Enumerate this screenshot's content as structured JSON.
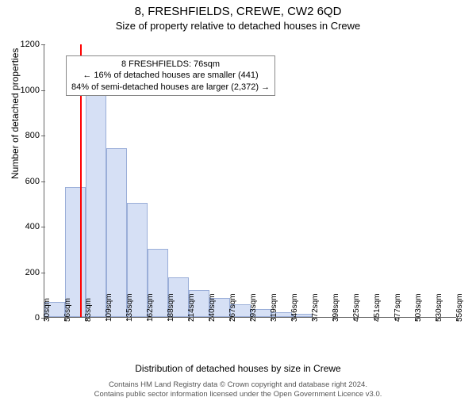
{
  "title": "8, FRESHFIELDS, CREWE, CW2 6QD",
  "subtitle": "Size of property relative to detached houses in Crewe",
  "ylabel": "Number of detached properties",
  "xlabel": "Distribution of detached houses by size in Crewe",
  "chart": {
    "type": "histogram",
    "ylim": [
      0,
      1200
    ],
    "ytick_step": 200,
    "yticks": [
      0,
      200,
      400,
      600,
      800,
      1000,
      1200
    ],
    "x_tick_labels": [
      "30sqm",
      "56sqm",
      "83sqm",
      "109sqm",
      "135sqm",
      "162sqm",
      "188sqm",
      "214sqm",
      "240sqm",
      "267sqm",
      "293sqm",
      "319sqm",
      "346sqm",
      "372sqm",
      "398sqm",
      "425sqm",
      "451sqm",
      "477sqm",
      "503sqm",
      "530sqm",
      "556sqm"
    ],
    "values": [
      65,
      570,
      980,
      740,
      500,
      300,
      175,
      120,
      85,
      55,
      35,
      20,
      15,
      0,
      0,
      0,
      0,
      0,
      0,
      0
    ],
    "bar_fill": "#d6e0f5",
    "bar_border": "#9aaed8",
    "bg": "#ffffff",
    "axis_color": "#666666",
    "marker": {
      "value_sqm": 76,
      "color": "#ff0000",
      "fraction": 0.0874
    },
    "annotation": {
      "line1": "8 FRESHFIELDS: 76sqm",
      "line2": "← 16% of detached houses are smaller (441)",
      "line3": "84% of semi-detached houses are larger (2,372) →",
      "border_color": "#888888",
      "bg": "#ffffff",
      "font_size": 11
    }
  },
  "footer": {
    "line1": "Contains HM Land Registry data © Crown copyright and database right 2024.",
    "line2": "Contains public sector information licensed under the Open Government Licence v3.0."
  }
}
